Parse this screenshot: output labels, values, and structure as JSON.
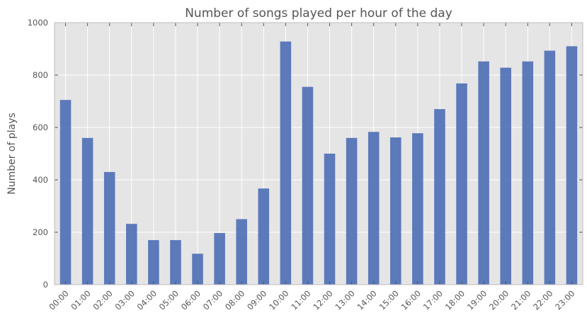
{
  "chart_data": {
    "type": "bar",
    "title": "Number of songs played per hour of the day",
    "xlabel": "",
    "ylabel": "Number of plays",
    "categories": [
      "00:00",
      "01:00",
      "02:00",
      "03:00",
      "04:00",
      "05:00",
      "06:00",
      "07:00",
      "08:00",
      "09:00",
      "10:00",
      "11:00",
      "12:00",
      "13:00",
      "14:00",
      "15:00",
      "16:00",
      "17:00",
      "18:00",
      "19:00",
      "20:00",
      "21:00",
      "22:00",
      "23:00"
    ],
    "values": [
      705,
      560,
      430,
      232,
      170,
      170,
      118,
      197,
      250,
      367,
      928,
      755,
      500,
      560,
      583,
      562,
      578,
      670,
      768,
      852,
      828,
      852,
      893,
      910
    ],
    "ylim": [
      0,
      1000
    ],
    "yticks": [
      0,
      200,
      400,
      600,
      800,
      1000
    ],
    "grid": true,
    "colors": {
      "bar": "#4c6db5",
      "plot_background": "#e5e5e5",
      "grid": "#ffffff",
      "text": "#555555"
    }
  }
}
